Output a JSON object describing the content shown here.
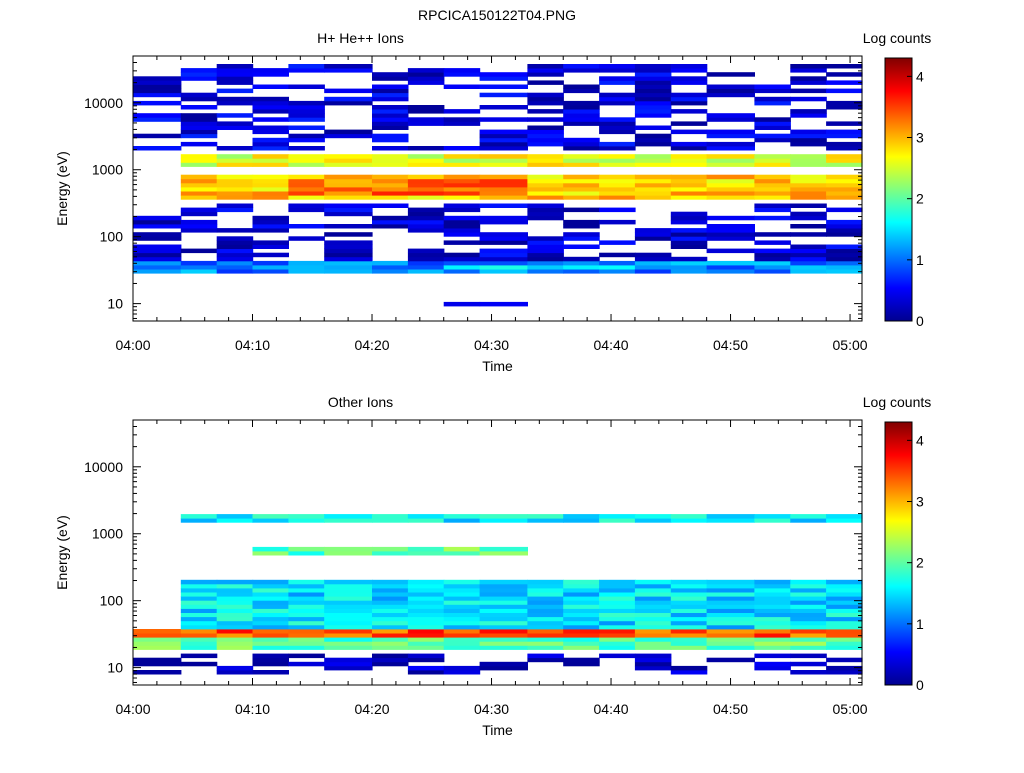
{
  "figure": {
    "title": "RPCICA150122T04.PNG",
    "time_ticks": [
      "04:00",
      "04:10",
      "04:20",
      "04:30",
      "04:40",
      "04:50",
      "05:00"
    ],
    "energy_ticks": [
      "10",
      "100",
      "1000",
      "10000"
    ]
  },
  "colormap": {
    "name": "jet",
    "stops": [
      "#00008f",
      "#0000ff",
      "#0080ff",
      "#00ffff",
      "#80ff80",
      "#ffff00",
      "#ff8000",
      "#ff0000",
      "#800000"
    ]
  },
  "chart_data": [
    {
      "type": "heatmap",
      "title": "H+ He++ Ions",
      "xlabel": "Time",
      "ylabel": "Energy (eV)",
      "colorbar_label": "Log counts",
      "colorbar_range": [
        0,
        4.3
      ],
      "colorbar_ticks": [
        "0",
        "1",
        "2",
        "3",
        "4"
      ],
      "x_range": [
        "04:00",
        "05:01"
      ],
      "y_range": [
        5.5,
        50000
      ],
      "y_scale": "log",
      "time_bins": [
        "04:00",
        "04:04",
        "04:07",
        "04:10",
        "04:13",
        "04:16",
        "04:20",
        "04:23",
        "04:26",
        "04:29",
        "04:33",
        "04:36",
        "04:39",
        "04:42",
        "04:45",
        "04:48",
        "04:52",
        "04:55",
        "04:58"
      ],
      "features": [
        {
          "e_lo": 1150,
          "e_hi": 1800,
          "level": 2.6,
          "from": "04:04",
          "to": "05:01"
        },
        {
          "e_lo": 350,
          "e_hi": 900,
          "level": 2.9,
          "from": "04:04",
          "to": "05:01"
        },
        {
          "e_lo": 420,
          "e_hi": 750,
          "level": 3.3,
          "from": "04:13",
          "to": "04:33"
        },
        {
          "e_lo": 30,
          "e_hi": 42,
          "level": 1.1,
          "from": "04:00",
          "to": "05:01"
        },
        {
          "e_lo": 32,
          "e_hi": 40,
          "level": 1.5,
          "from": "04:26",
          "to": "04:42"
        },
        {
          "e_lo": 2000,
          "e_hi": 45000,
          "level": 0.35,
          "from": "04:00",
          "to": "05:01"
        },
        {
          "e_lo": 40,
          "e_hi": 320,
          "level": 0.3,
          "from": "04:00",
          "to": "05:01"
        },
        {
          "e_lo": 6,
          "e_hi": 10,
          "level": 0.15,
          "from": "04:26",
          "to": "04:33"
        }
      ]
    },
    {
      "type": "heatmap",
      "title": "Other Ions",
      "xlabel": "Time",
      "ylabel": "Energy (eV)",
      "colorbar_label": "Log counts",
      "colorbar_range": [
        0,
        4.3
      ],
      "colorbar_ticks": [
        "0",
        "1",
        "2",
        "3",
        "4"
      ],
      "x_range": [
        "04:00",
        "05:01"
      ],
      "y_range": [
        5.5,
        50000
      ],
      "y_scale": "log",
      "time_bins": [
        "04:00",
        "04:04",
        "04:07",
        "04:10",
        "04:13",
        "04:16",
        "04:20",
        "04:23",
        "04:26",
        "04:29",
        "04:33",
        "04:36",
        "04:39",
        "04:42",
        "04:45",
        "04:48",
        "04:52",
        "04:55",
        "04:58"
      ],
      "features": [
        {
          "e_lo": 28,
          "e_hi": 40,
          "level": 3.4,
          "from": "04:00",
          "to": "05:01"
        },
        {
          "e_lo": 40,
          "e_hi": 200,
          "level": 1.5,
          "from": "04:04",
          "to": "05:01"
        },
        {
          "e_lo": 1400,
          "e_hi": 2000,
          "level": 1.6,
          "from": "04:04",
          "to": "05:01"
        },
        {
          "e_lo": 450,
          "e_hi": 650,
          "level": 2.0,
          "from": "04:10",
          "to": "04:33"
        },
        {
          "e_lo": 20,
          "e_hi": 27,
          "level": 2.0,
          "from": "04:00",
          "to": "05:01"
        },
        {
          "e_lo": 6,
          "e_hi": 16,
          "level": 0.2,
          "from": "04:00",
          "to": "05:01"
        }
      ]
    }
  ]
}
